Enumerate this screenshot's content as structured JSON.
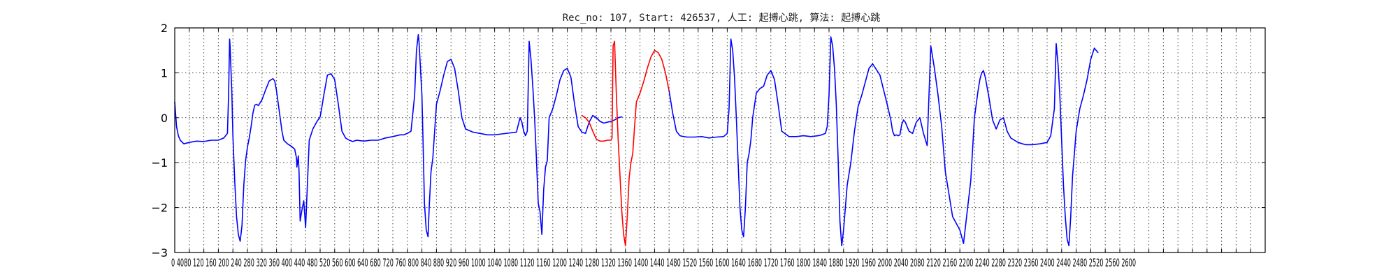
{
  "chart_data": {
    "type": "line",
    "title": "Rec_no: 107, Start: 426537, 人工: 起搏心跳, 算法: 起搏心跳",
    "xlabel": "",
    "ylabel": "",
    "xlim": [
      0,
      3000
    ],
    "ylim": [
      -3,
      2
    ],
    "yticks": [
      2,
      1,
      0,
      -1,
      -2,
      -3
    ],
    "ytick_labels": [
      "2",
      "1",
      "0",
      "−1",
      "−2",
      "−3"
    ],
    "xticks": [
      0,
      40,
      80,
      120,
      160,
      200,
      240,
      280,
      320,
      360,
      400,
      440,
      480,
      520,
      560,
      600,
      640,
      680,
      720,
      760,
      800,
      840,
      880,
      920,
      960,
      1000,
      1040,
      1080,
      1120,
      1160,
      1200,
      1240,
      1280,
      1320,
      1360,
      1400,
      1440,
      1480,
      1520,
      1560,
      1600,
      1640,
      1680,
      1720,
      1760,
      1800,
      1840,
      1880,
      1920,
      1960,
      2000,
      2040,
      2080,
      2120,
      2160,
      2200,
      2240,
      2280,
      2320,
      2360,
      2400,
      2440,
      2480,
      2520,
      2560,
      2600,
      2640,
      2680,
      2720,
      2760,
      2800,
      2840,
      2880,
      2920,
      2960,
      3000
    ],
    "xtick_label_text": "0 4080 120 160 200 240 280 320 360 400 440 480 520 560 600 640 680 720 760 800 840 880 920 960 1000 1040 1080 1120 1160 1200 1240 1280 1320 1360 1400 1440 1480 1520 1560 1600 1640 1680 1720 1760 1800 1840 1880 1920 1960 2000 2040 2080 2120 2160 2200 2240 2280 2320 2360 2400 2440 2480 2520 2560 2600",
    "grid": true,
    "colors": {
      "normal": "#0000ff",
      "highlight": "#ff0000"
    },
    "series": [
      {
        "color": "#0000ff",
        "x": [
          0,
          5,
          10,
          15,
          25,
          40,
          60,
          80,
          100,
          120,
          135,
          145,
          148,
          151,
          152,
          154,
          157,
          160,
          165,
          170,
          175,
          180,
          185,
          190,
          195,
          200,
          205,
          210,
          215,
          220,
          225,
          230,
          240,
          250,
          260,
          270,
          275,
          280,
          285,
          290,
          295,
          300,
          310,
          320,
          330,
          335,
          336,
          340,
          342,
          345,
          350,
          355,
          360,
          370,
          380,
          390,
          400,
          405,
          410,
          420,
          430,
          440,
          450,
          460,
          470,
          480,
          490,
          500,
          520,
          540,
          560,
          580,
          600,
          620,
          630,
          640,
          650,
          660,
          665,
          670,
          672,
          675,
          680,
          683,
          687,
          692,
          697,
          700,
          705,
          710,
          720,
          730,
          740,
          750,
          760,
          770,
          780,
          790,
          800,
          820,
          840,
          860,
          880,
          900,
          940,
          950,
          955,
          960,
          965,
          970,
          975,
          980,
          985,
          990,
          995,
          1000,
          1005,
          1010,
          1015,
          1020,
          1025,
          1030,
          1040,
          1050,
          1060,
          1070,
          1080,
          1090,
          1100,
          1110,
          1120,
          1130,
          1140,
          1150,
          1160,
          1170,
          1180,
          1190,
          1200,
          1210,
          1220,
          1230
        ],
        "y": [
          0.35,
          -0.2,
          -0.4,
          -0.5,
          -0.58,
          -0.55,
          -0.52,
          -0.53,
          -0.5,
          -0.5,
          -0.45,
          -0.35,
          0.5,
          1.75,
          1.65,
          1.2,
          0.6,
          -0.4,
          -1.4,
          -2.2,
          -2.6,
          -2.75,
          -2.4,
          -1.5,
          -0.95,
          -0.65,
          -0.45,
          -0.2,
          0.1,
          0.28,
          0.3,
          0.27,
          0.4,
          0.62,
          0.82,
          0.87,
          0.82,
          0.6,
          0.3,
          0.0,
          -0.3,
          -0.5,
          -0.58,
          -0.63,
          -0.7,
          -0.9,
          -1.1,
          -0.85,
          -1.2,
          -2.3,
          -2.05,
          -1.85,
          -2.45,
          -0.5,
          -0.25,
          -0.1,
          0.02,
          0.25,
          0.5,
          0.95,
          0.98,
          0.85,
          0.3,
          -0.3,
          -0.45,
          -0.5,
          -0.53,
          -0.5,
          -0.52,
          -0.5,
          -0.5,
          -0.45,
          -0.42,
          -0.38,
          -0.38,
          -0.35,
          -0.3,
          0.5,
          1.5,
          1.85,
          1.7,
          1.25,
          0.5,
          -0.5,
          -1.9,
          -2.5,
          -2.65,
          -2.0,
          -1.2,
          -0.9,
          0.3,
          0.6,
          0.95,
          1.25,
          1.3,
          1.1,
          0.6,
          0.0,
          -0.25,
          -0.32,
          -0.35,
          -0.38,
          -0.38,
          -0.36,
          -0.32,
          0.0,
          -0.1,
          -0.3,
          -0.4,
          -0.3,
          1.7,
          1.3,
          0.7,
          0.0,
          -0.9,
          -1.9,
          -2.1,
          -2.6,
          -1.6,
          -1.1,
          -0.95,
          0.0,
          0.2,
          0.5,
          0.85,
          1.05,
          1.1,
          0.9,
          0.3,
          -0.2,
          -0.32,
          -0.35,
          -0.1,
          0.05,
          0.0,
          -0.08,
          -0.12,
          -0.1,
          -0.08,
          -0.05,
          0.0,
          0.02
        ]
      },
      {
        "color": "#ff0000",
        "x": [
          1120,
          1130,
          1140,
          1150,
          1160,
          1170,
          1180,
          1190,
          1200,
          1203,
          1206,
          1210,
          1215,
          1220,
          1225,
          1230,
          1235,
          1240,
          1245,
          1250,
          1255,
          1260,
          1265,
          1270,
          1280,
          1290,
          1300,
          1310,
          1320,
          1330,
          1340,
          1350,
          1360
        ],
        "y": [
          0.05,
          0.0,
          -0.1,
          -0.3,
          -0.48,
          -0.52,
          -0.52,
          -0.5,
          -0.5,
          -0.45,
          1.6,
          1.7,
          0.5,
          -0.5,
          -1.3,
          -2.1,
          -2.6,
          -2.85,
          -2.2,
          -1.35,
          -1.0,
          -0.8,
          -0.2,
          0.35,
          0.55,
          0.8,
          1.1,
          1.35,
          1.5,
          1.45,
          1.3,
          1.0,
          0.6
        ]
      },
      {
        "color": "#0000ff",
        "x": [
          1360,
          1370,
          1380,
          1390,
          1400,
          1410,
          1430,
          1450,
          1470,
          1490,
          1510,
          1520,
          1525,
          1530,
          1535,
          1540,
          1545,
          1550,
          1555,
          1560,
          1565,
          1570,
          1575,
          1580,
          1585,
          1590,
          1600,
          1610,
          1620,
          1630,
          1640,
          1650,
          1660,
          1670,
          1690,
          1710,
          1730,
          1750,
          1770,
          1780,
          1790,
          1795,
          1800,
          1805,
          1810,
          1815,
          1820,
          1825,
          1830,
          1835,
          1840,
          1850,
          1860,
          1870,
          1880,
          1890,
          1900,
          1910,
          1920,
          1940,
          1960,
          1970,
          1975,
          1980,
          1985,
          1990,
          1995,
          2000,
          2005,
          2010,
          2020,
          2030,
          2040,
          2050,
          2060,
          2070,
          2080,
          2090,
          2100,
          2110,
          2120,
          2140,
          2160,
          2170,
          2180,
          2190,
          2195,
          2200,
          2205,
          2210,
          2215,
          2220,
          2225,
          2230,
          2240,
          2250,
          2260,
          2270,
          2280,
          2290
        ],
        "y": [
          0.6,
          0.1,
          -0.3,
          -0.4,
          -0.42,
          -0.43,
          -0.43,
          -0.42,
          -0.45,
          -0.43,
          -0.42,
          -0.35,
          0.2,
          1.75,
          1.5,
          0.9,
          0.0,
          -1.0,
          -2.0,
          -2.5,
          -2.65,
          -2.0,
          -1.0,
          -0.8,
          -0.5,
          0.0,
          0.55,
          0.65,
          0.7,
          0.95,
          1.05,
          0.85,
          0.3,
          -0.3,
          -0.42,
          -0.42,
          -0.4,
          -0.42,
          -0.4,
          -0.38,
          -0.35,
          -0.2,
          0.5,
          1.8,
          1.6,
          1.1,
          0.3,
          -0.9,
          -2.3,
          -2.85,
          -2.5,
          -1.5,
          -1.0,
          -0.3,
          0.25,
          0.5,
          0.8,
          1.1,
          1.2,
          0.95,
          0.3,
          -0.05,
          -0.3,
          -0.4,
          -0.38,
          -0.4,
          -0.38,
          -0.15,
          -0.05,
          -0.1,
          -0.3,
          -0.35,
          -0.1,
          0.0,
          -0.35,
          -0.62,
          1.6,
          1.1,
          0.5,
          -0.2,
          -1.2,
          -2.2,
          -2.5,
          -2.8,
          -2.1,
          -1.4,
          -0.7,
          0.0,
          0.3,
          0.6,
          0.85,
          1.0,
          1.05,
          0.9,
          0.45,
          -0.05,
          -0.25,
          -0.05,
          0.0,
          -0.3
        ]
      },
      {
        "color": "#0000ff",
        "x": [
          2290,
          2300,
          2310,
          2320,
          2340,
          2360,
          2380,
          2400,
          2410,
          2420,
          2425,
          2430,
          2435,
          2440,
          2445,
          2450,
          2455,
          2460,
          2465,
          2470,
          2475,
          2480,
          2490,
          2500,
          2510,
          2520,
          2530,
          2535,
          2540
        ],
        "y": [
          -0.3,
          -0.45,
          -0.5,
          -0.55,
          -0.6,
          -0.6,
          -0.58,
          -0.55,
          -0.4,
          0.2,
          1.65,
          1.2,
          0.5,
          -0.5,
          -1.5,
          -2.2,
          -2.7,
          -2.85,
          -2.2,
          -1.3,
          -0.8,
          -0.3,
          0.2,
          0.5,
          0.85,
          1.3,
          1.55,
          1.5,
          1.45
        ]
      }
    ]
  }
}
